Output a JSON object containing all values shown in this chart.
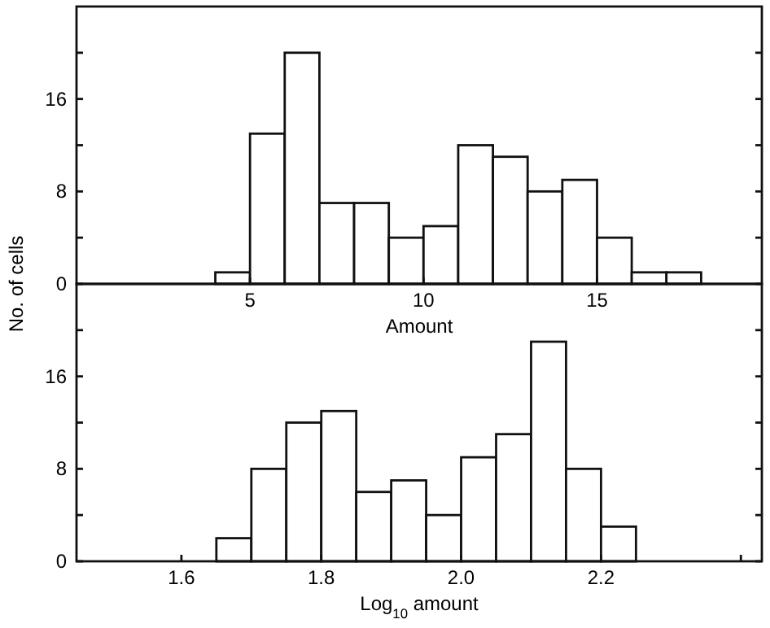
{
  "chart_data": [
    {
      "type": "histogram",
      "ylabel": "No. of cells",
      "xlabel": "Amount",
      "bins": [
        4,
        5,
        6,
        7,
        8,
        9,
        10,
        11,
        12,
        13,
        14,
        15,
        16,
        17,
        18
      ],
      "values": [
        1,
        13,
        20,
        7,
        7,
        4,
        5,
        12,
        11,
        8,
        9,
        4,
        1,
        1
      ],
      "color": "#ffffff",
      "xlim": [
        0,
        19.75
      ],
      "xticks": [
        5,
        10,
        15
      ],
      "ylim": [
        0,
        24
      ],
      "yticks": [
        0,
        {
          "value": 4,
          "label": null
        },
        8,
        {
          "value": 12,
          "label": null
        },
        16,
        {
          "value": 20,
          "label": null
        }
      ],
      "grid": false
    },
    {
      "type": "histogram",
      "xlabel": "Log$_{10}$ amount",
      "bins": [
        1.65,
        1.7,
        1.75,
        1.8,
        1.85,
        1.9,
        1.95,
        2.0,
        2.05,
        2.1,
        2.15,
        2.2,
        2.25
      ],
      "values": [
        2,
        8,
        12,
        13,
        6,
        7,
        4,
        9,
        11,
        19,
        8,
        3
      ],
      "color": "#ffffff",
      "xlim": [
        1.45,
        2.43
      ],
      "xticks": [
        {
          "value": 1.6,
          "label": "1.6"
        },
        {
          "value": 1.8,
          "label": "1.8"
        },
        {
          "value": 2.0,
          "label": "2.0"
        },
        {
          "value": 2.2,
          "label": "2.2"
        },
        {
          "value": 2.4,
          "label": null
        }
      ],
      "ylim": [
        0,
        24
      ],
      "yticks": [
        0,
        {
          "value": 4,
          "label": null
        },
        8,
        {
          "value": 12,
          "label": null
        },
        16,
        {
          "value": 20,
          "label": null
        }
      ],
      "grid": false
    }
  ]
}
